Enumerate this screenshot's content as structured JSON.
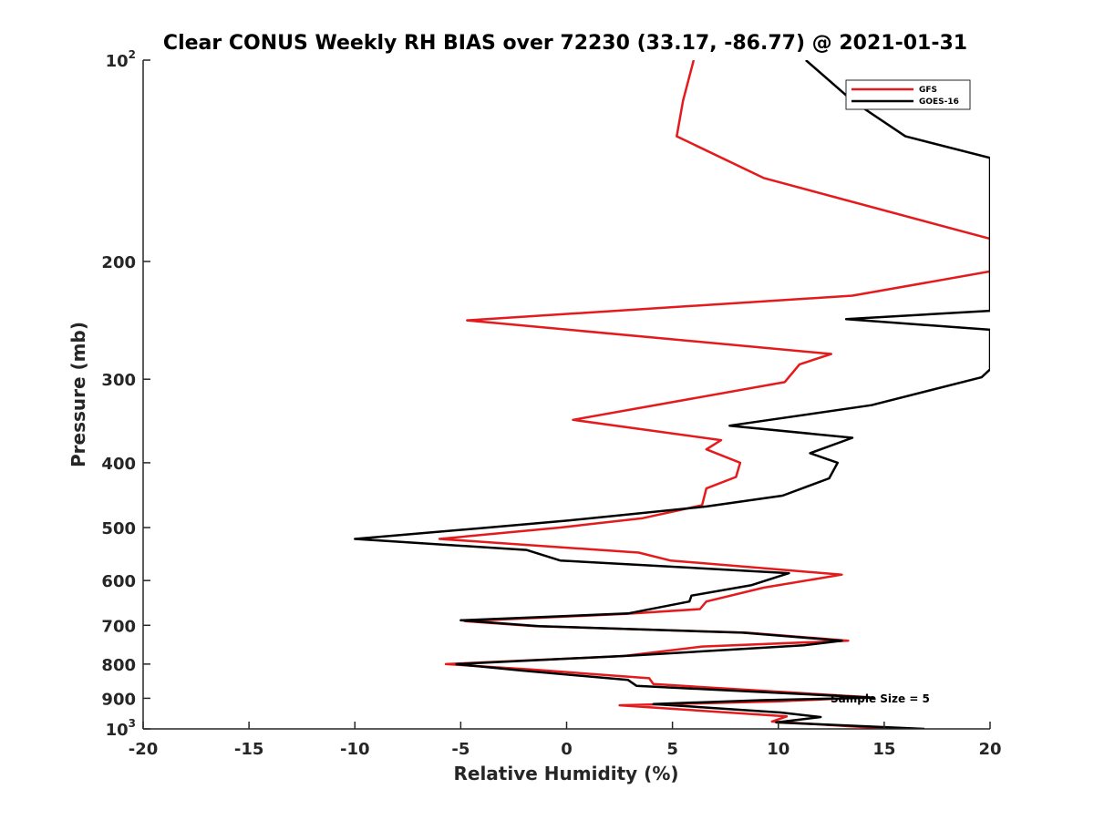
{
  "chart_data": {
    "type": "line",
    "title": "Clear CONUS Weekly RH BIAS over 72230 (33.17, -86.77) @ 2021-01-31",
    "xlabel": "Relative Humidity (%)",
    "ylabel": "Pressure (mb)",
    "xlim": [
      -20,
      20
    ],
    "ylim": [
      100,
      1000
    ],
    "yscale": "log",
    "yreversed": true,
    "grid": false,
    "legend_position": "top-right",
    "x_ticks": [
      -20,
      -15,
      -10,
      -5,
      0,
      5,
      10,
      15,
      20
    ],
    "x_tick_labels": [
      "-20",
      "-15",
      "-10",
      "-5",
      "0",
      "5",
      "10",
      "15",
      "20"
    ],
    "y_ticks": [
      {
        "value": 100,
        "base": "10",
        "exp": "2"
      },
      {
        "value": 200,
        "base": "200",
        "exp": ""
      },
      {
        "value": 300,
        "base": "300",
        "exp": ""
      },
      {
        "value": 400,
        "base": "400",
        "exp": ""
      },
      {
        "value": 500,
        "base": "500",
        "exp": ""
      },
      {
        "value": 600,
        "base": "600",
        "exp": ""
      },
      {
        "value": 700,
        "base": "700",
        "exp": ""
      },
      {
        "value": 800,
        "base": "800",
        "exp": ""
      },
      {
        "value": 900,
        "base": "900",
        "exp": ""
      },
      {
        "value": 1000,
        "base": "10",
        "exp": "3"
      }
    ],
    "annotation": "Sample Size = 5",
    "series": [
      {
        "name": "GFS",
        "color": "#e41a1c",
        "points": [
          [
            6.0,
            100
          ],
          [
            5.5,
            115
          ],
          [
            5.2,
            130
          ],
          [
            9.3,
            150
          ],
          [
            20.0,
            185
          ],
          [
            20.0,
            207
          ],
          [
            13.5,
            225
          ],
          [
            -4.7,
            245
          ],
          [
            12.5,
            275
          ],
          [
            11.0,
            285
          ],
          [
            10.3,
            303
          ],
          [
            0.3,
            345
          ],
          [
            7.3,
            370
          ],
          [
            6.6,
            382
          ],
          [
            8.2,
            400
          ],
          [
            8.0,
            420
          ],
          [
            6.6,
            437
          ],
          [
            6.4,
            463
          ],
          [
            3.6,
            484
          ],
          [
            -0.3,
            500
          ],
          [
            -6.0,
            520
          ],
          [
            3.4,
            545
          ],
          [
            4.9,
            560
          ],
          [
            13.0,
            588
          ],
          [
            9.3,
            615
          ],
          [
            6.6,
            645
          ],
          [
            6.3,
            662
          ],
          [
            2.8,
            673
          ],
          [
            -4.8,
            690
          ],
          [
            -1.5,
            702
          ],
          [
            8.5,
            718
          ],
          [
            13.3,
            738
          ],
          [
            6.4,
            753
          ],
          [
            2.7,
            778
          ],
          [
            -5.7,
            800
          ],
          [
            -1.7,
            815
          ],
          [
            3.9,
            840
          ],
          [
            4.1,
            857
          ],
          [
            14.3,
            897
          ],
          [
            9.9,
            910
          ],
          [
            2.5,
            922
          ],
          [
            10.4,
            958
          ],
          [
            9.7,
            975
          ],
          [
            15.4,
            1000
          ]
        ]
      },
      {
        "name": "GOES-16",
        "color": "#000000",
        "points": [
          [
            11.3,
            100
          ],
          [
            13.5,
            115
          ],
          [
            16.0,
            130
          ],
          [
            20.0,
            140
          ],
          [
            20.0,
            237
          ],
          [
            13.2,
            244
          ],
          [
            20.0,
            253
          ],
          [
            20.0,
            290
          ],
          [
            19.6,
            298
          ],
          [
            14.4,
            328
          ],
          [
            7.7,
            352
          ],
          [
            13.5,
            367
          ],
          [
            11.5,
            387
          ],
          [
            12.8,
            400
          ],
          [
            12.4,
            422
          ],
          [
            10.2,
            448
          ],
          [
            6.6,
            465
          ],
          [
            0.1,
            488
          ],
          [
            -3.7,
            500
          ],
          [
            -10.0,
            520
          ],
          [
            -1.9,
            540
          ],
          [
            -0.3,
            560
          ],
          [
            10.5,
            585
          ],
          [
            8.7,
            610
          ],
          [
            5.9,
            632
          ],
          [
            5.8,
            645
          ],
          [
            2.9,
            672
          ],
          [
            -5.0,
            688
          ],
          [
            -1.3,
            702
          ],
          [
            8.3,
            718
          ],
          [
            13.0,
            738
          ],
          [
            11.2,
            750
          ],
          [
            3.0,
            777
          ],
          [
            -5.2,
            800
          ],
          [
            -2.1,
            818
          ],
          [
            2.9,
            845
          ],
          [
            3.3,
            862
          ],
          [
            14.5,
            898
          ],
          [
            9.2,
            906
          ],
          [
            4.1,
            918
          ],
          [
            10.1,
            945
          ],
          [
            12.0,
            960
          ],
          [
            9.9,
            978
          ],
          [
            16.9,
            1000
          ]
        ]
      }
    ]
  }
}
